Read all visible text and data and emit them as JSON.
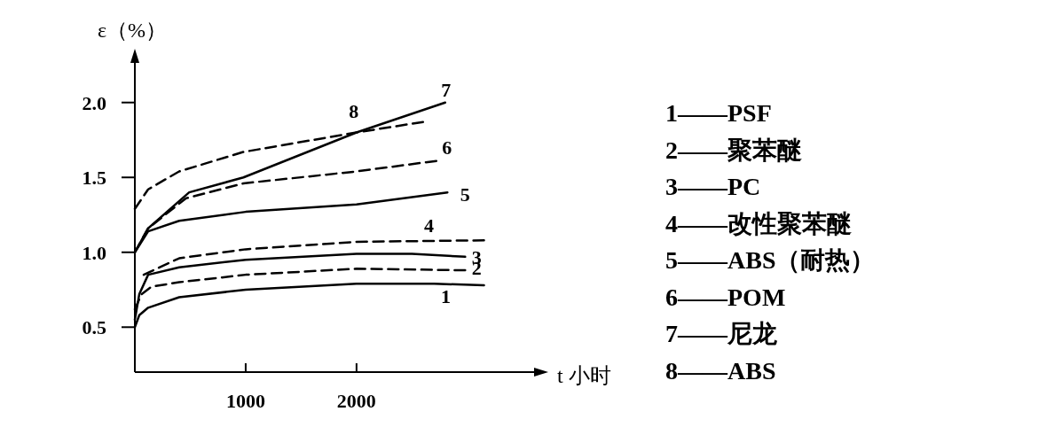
{
  "chart_data": {
    "type": "line",
    "xlabel": "t 小时",
    "ylabel": "ε（%）",
    "xlim": [
      0,
      3650
    ],
    "ylim": [
      0.2,
      2.3
    ],
    "xticks": [
      1000,
      2000
    ],
    "yticks": [
      0.5,
      {
        "value": 1.0,
        "label": "1.0"
      },
      1.5,
      {
        "value": 2.0,
        "label": "2.0"
      }
    ],
    "series": [
      {
        "name": "1",
        "color": "#000000",
        "line_style": "solid",
        "x": [
          0,
          40,
          120,
          400,
          1000,
          2000,
          2700,
          3150
        ],
        "values": [
          0.5,
          0.58,
          0.63,
          0.7,
          0.75,
          0.79,
          0.79,
          0.78
        ]
      },
      {
        "name": "2",
        "color": "#000000",
        "line_style": "dashed",
        "x": [
          0,
          60,
          150,
          400,
          1000,
          2000,
          2980
        ],
        "values": [
          0.62,
          0.72,
          0.77,
          0.8,
          0.85,
          0.89,
          0.88
        ]
      },
      {
        "name": "3",
        "color": "#000000",
        "line_style": "solid",
        "x": [
          0,
          40,
          120,
          400,
          1000,
          2000,
          2500,
          2980
        ],
        "values": [
          0.55,
          0.72,
          0.85,
          0.9,
          0.95,
          0.99,
          0.99,
          0.97
        ]
      },
      {
        "name": "4",
        "color": "#000000",
        "line_style": "dashed",
        "x": [
          80,
          400,
          1000,
          2000,
          3150
        ],
        "values": [
          0.85,
          0.96,
          1.02,
          1.07,
          1.08
        ]
      },
      {
        "name": "5",
        "color": "#000000",
        "line_style": "solid",
        "x": [
          0,
          120,
          400,
          1000,
          2000,
          2820
        ],
        "values": [
          1.0,
          1.14,
          1.21,
          1.27,
          1.32,
          1.4
        ]
      },
      {
        "name": "6",
        "color": "#000000",
        "line_style": "dashed",
        "x": [
          0,
          120,
          460,
          980,
          2000,
          2720
        ],
        "values": [
          1.0,
          1.16,
          1.36,
          1.46,
          1.54,
          1.61
        ]
      },
      {
        "name": "7",
        "color": "#000000",
        "line_style": "solid",
        "x": [
          0,
          120,
          490,
          980,
          2000,
          2800
        ],
        "values": [
          1.0,
          1.16,
          1.4,
          1.5,
          1.8,
          2.0
        ]
      },
      {
        "name": "8",
        "color": "#000000",
        "line_style": "dashed",
        "x": [
          0,
          120,
          400,
          980,
          2000,
          2600
        ],
        "values": [
          1.29,
          1.42,
          1.54,
          1.67,
          1.8,
          1.87
        ]
      }
    ],
    "annotations": [
      "1——PSF",
      "2——聚苯醚",
      "3——PC",
      "4——改性聚苯醚",
      "5——ABS（耐热）",
      "6——POM",
      "7——尼龙",
      "8——ABS"
    ]
  }
}
